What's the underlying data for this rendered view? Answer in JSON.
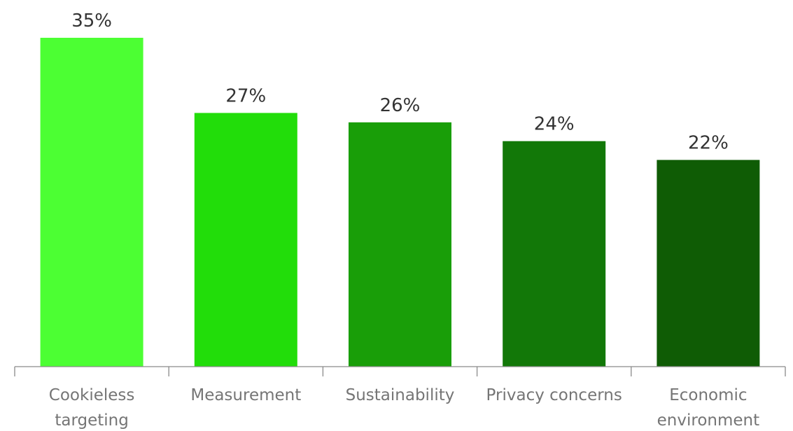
{
  "chart_data": {
    "type": "bar",
    "title": "",
    "xlabel": "",
    "ylabel": "",
    "categories": [
      [
        "Cookieless",
        "targeting"
      ],
      [
        "Measurement"
      ],
      [
        "Sustainability"
      ],
      [
        "Privacy concerns"
      ],
      [
        "Economic",
        "environment"
      ]
    ],
    "values": [
      35,
      27,
      26,
      24,
      22
    ],
    "value_labels": [
      "35%",
      "27%",
      "26%",
      "24%",
      "22%"
    ],
    "unit": "%",
    "ylim": [
      0,
      35
    ],
    "grid": false,
    "legend": "none",
    "colors": [
      "#4cff33",
      "#22dd0a",
      "#199e08",
      "#127808",
      "#0f5c05"
    ]
  }
}
